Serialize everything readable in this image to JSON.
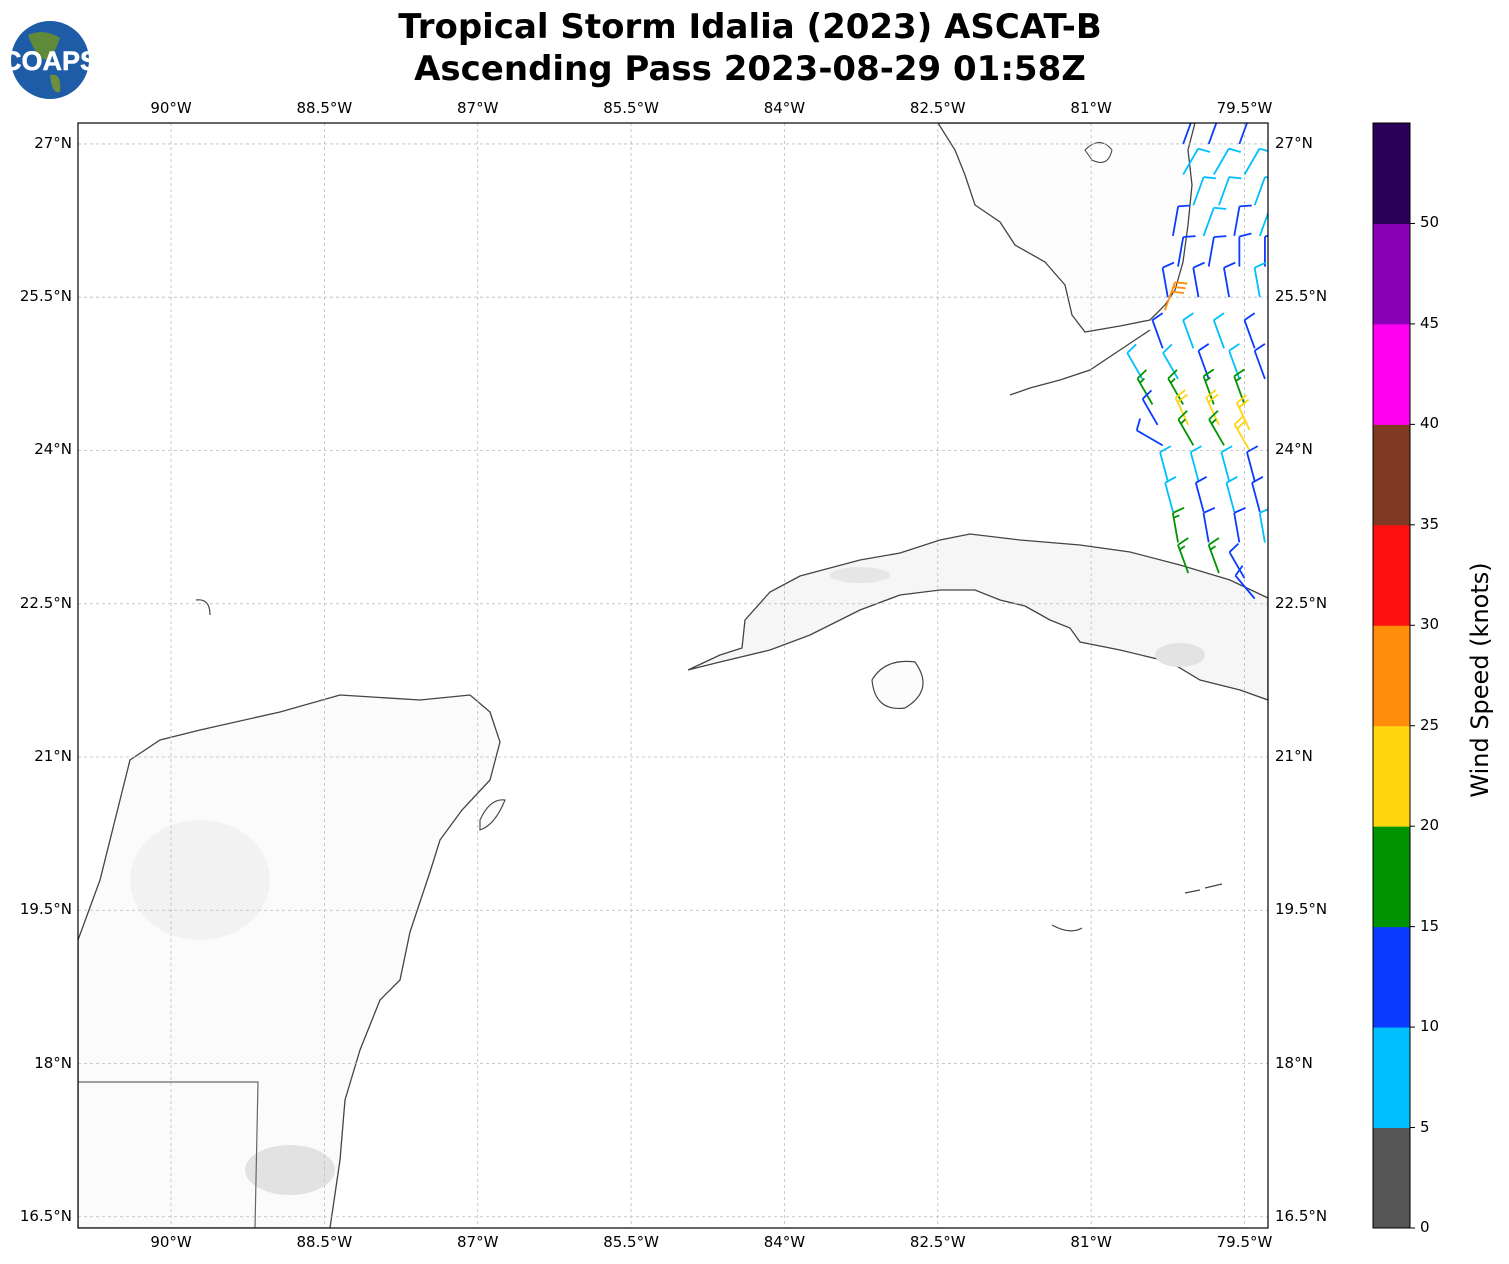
{
  "title": {
    "line1": "Tropical Storm Idalia (2023) ASCAT-B",
    "line2": "Ascending Pass 2023-08-29 01:58Z"
  },
  "logo": {
    "text": "COAPS"
  },
  "map": {
    "lon_range": [
      -90.91,
      -79.27
    ],
    "lat_range": [
      16.39,
      27.205
    ],
    "lon_ticks": [
      {
        "v": -90,
        "label": "90°W"
      },
      {
        "v": -88.5,
        "label": "88.5°W"
      },
      {
        "v": -87,
        "label": "87°W"
      },
      {
        "v": -85.5,
        "label": "85.5°W"
      },
      {
        "v": -84,
        "label": "84°W"
      },
      {
        "v": -82.5,
        "label": "82.5°W"
      },
      {
        "v": -81,
        "label": "81°W"
      },
      {
        "v": -79.5,
        "label": "79.5°W"
      }
    ],
    "lat_ticks": [
      {
        "v": 27,
        "label": "27°N"
      },
      {
        "v": 25.5,
        "label": "25.5°N"
      },
      {
        "v": 24,
        "label": "24°N"
      },
      {
        "v": 22.5,
        "label": "22.5°N"
      },
      {
        "v": 21,
        "label": "21°N"
      },
      {
        "v": 19.5,
        "label": "19.5°N"
      },
      {
        "v": 18,
        "label": "18°N"
      },
      {
        "v": 16.5,
        "label": "16.5°N"
      }
    ]
  },
  "colorbar": {
    "label": "Wind Speed (knots)",
    "bounds": [
      0,
      5,
      10,
      15,
      20,
      25,
      30,
      35,
      40,
      45,
      50,
      55
    ],
    "colors": [
      "#555555",
      "#00bfff",
      "#0a3cff",
      "#009400",
      "#ffd510",
      "#ff8c0a",
      "#ff1010",
      "#7f3a26",
      "#ff00f0",
      "#8a00b8",
      "#2a0058"
    ],
    "tick_labels": [
      "0",
      "5",
      "10",
      "15",
      "20",
      "25",
      "30",
      "35",
      "40",
      "45",
      "50"
    ]
  },
  "barbs": [
    [
      -80.1,
      27.0,
      12,
      20
    ],
    [
      -79.85,
      27.0,
      12,
      20
    ],
    [
      -79.55,
      27.0,
      12,
      20
    ],
    [
      -80.1,
      26.7,
      8,
      30
    ],
    [
      -79.8,
      26.7,
      8,
      30
    ],
    [
      -79.5,
      26.7,
      8,
      30
    ],
    [
      -80.0,
      26.4,
      8,
      20
    ],
    [
      -79.75,
      26.4,
      8,
      20
    ],
    [
      -79.4,
      26.4,
      8,
      20
    ],
    [
      -80.2,
      26.1,
      12,
      10
    ],
    [
      -79.9,
      26.1,
      8,
      20
    ],
    [
      -79.6,
      26.1,
      12,
      10
    ],
    [
      -79.35,
      26.1,
      8,
      20
    ],
    [
      -80.15,
      25.8,
      12,
      10
    ],
    [
      -79.85,
      25.8,
      12,
      10
    ],
    [
      -79.55,
      25.8,
      12,
      0
    ],
    [
      -79.3,
      25.8,
      12,
      0
    ],
    [
      -80.25,
      25.5,
      12,
      350
    ],
    [
      -79.95,
      25.5,
      12,
      350
    ],
    [
      -79.65,
      25.5,
      12,
      350
    ],
    [
      -79.35,
      25.5,
      8,
      350
    ],
    [
      -80.28,
      25.37,
      28,
      20
    ],
    [
      -80.3,
      25.0,
      12,
      340
    ],
    [
      -80.0,
      25.0,
      8,
      340
    ],
    [
      -79.7,
      25.0,
      8,
      340
    ],
    [
      -79.4,
      25.0,
      12,
      340
    ],
    [
      -80.5,
      24.7,
      8,
      330
    ],
    [
      -80.15,
      24.7,
      8,
      330
    ],
    [
      -79.85,
      24.7,
      12,
      340
    ],
    [
      -79.55,
      24.7,
      8,
      340
    ],
    [
      -79.3,
      24.7,
      12,
      340
    ],
    [
      -80.4,
      24.45,
      17,
      330
    ],
    [
      -80.1,
      24.45,
      17,
      330
    ],
    [
      -79.8,
      24.45,
      17,
      340
    ],
    [
      -79.5,
      24.45,
      17,
      340
    ],
    [
      -80.35,
      24.25,
      12,
      330
    ],
    [
      -80.05,
      24.25,
      22,
      335
    ],
    [
      -79.75,
      24.25,
      22,
      335
    ],
    [
      -79.45,
      24.2,
      22,
      335
    ],
    [
      -80.3,
      24.05,
      12,
      300
    ],
    [
      -80.0,
      24.05,
      17,
      330
    ],
    [
      -79.7,
      24.05,
      17,
      330
    ],
    [
      -79.45,
      24.0,
      22,
      330
    ],
    [
      -80.25,
      23.7,
      8,
      345
    ],
    [
      -79.95,
      23.7,
      8,
      345
    ],
    [
      -79.65,
      23.7,
      8,
      345
    ],
    [
      -79.4,
      23.7,
      12,
      345
    ],
    [
      -80.2,
      23.4,
      8,
      345
    ],
    [
      -79.9,
      23.4,
      12,
      345
    ],
    [
      -79.6,
      23.4,
      8,
      345
    ],
    [
      -79.35,
      23.4,
      12,
      345
    ],
    [
      -80.15,
      23.1,
      17,
      350
    ],
    [
      -79.85,
      23.1,
      12,
      350
    ],
    [
      -79.55,
      23.1,
      12,
      350
    ],
    [
      -79.3,
      23.1,
      8,
      350
    ],
    [
      -80.05,
      22.8,
      17,
      340
    ],
    [
      -79.75,
      22.8,
      17,
      340
    ],
    [
      -79.5,
      22.75,
      12,
      330
    ],
    [
      -79.4,
      22.55,
      12,
      320
    ]
  ]
}
